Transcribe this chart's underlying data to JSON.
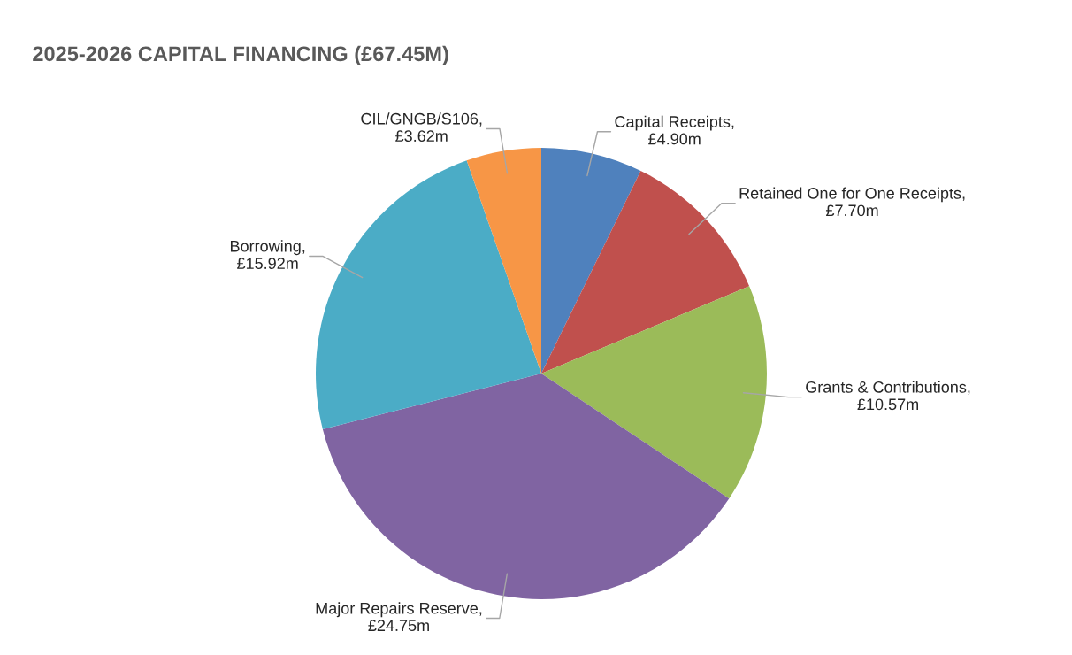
{
  "chart_data": {
    "type": "pie",
    "title": "2025-2026 CAPITAL FINANCING (£67.45M)",
    "categories": [
      "Capital Receipts, £4.90m",
      "Retained One for One Receipts, £7.70m",
      "Grants & Contributions, £10.57m",
      "Major Repairs Reserve, £24.75m",
      "Borrowing, £15.92m",
      "CIL/GNGB/S106, £3.62m"
    ],
    "values": [
      4.9,
      7.7,
      10.57,
      24.75,
      15.92,
      3.62
    ],
    "colors": [
      "#4f81bd",
      "#c0504d",
      "#9bbb59",
      "#8064a2",
      "#4bacc6",
      "#f79646"
    ]
  }
}
